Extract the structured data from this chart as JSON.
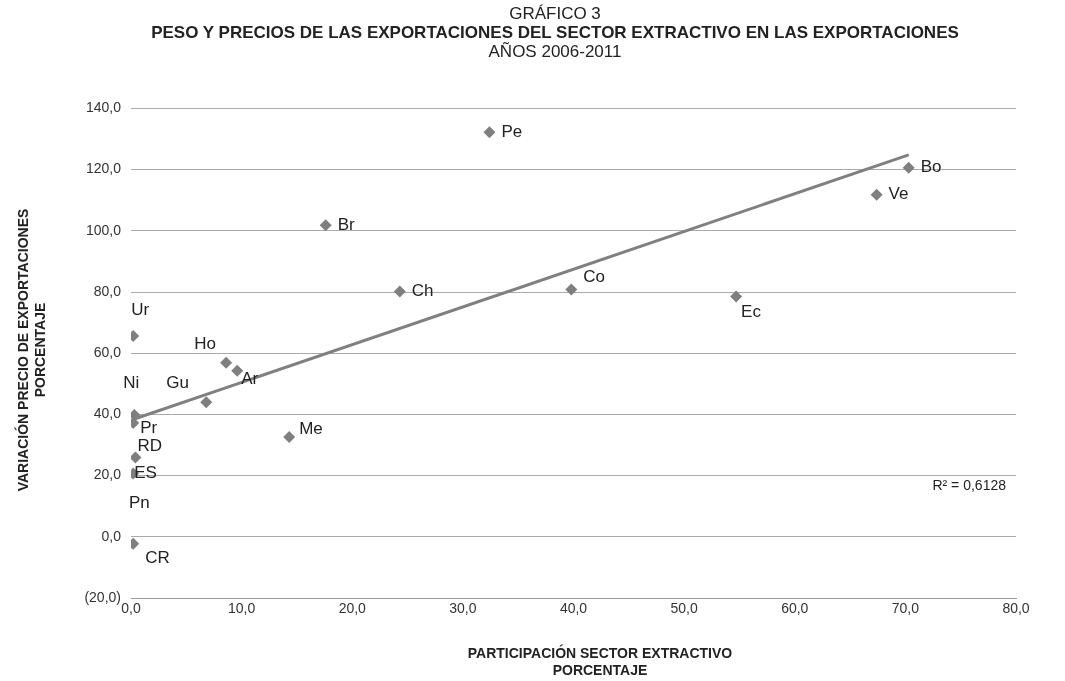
{
  "chart_data": {
    "type": "scatter",
    "title": "PESO Y PRECIOS DE LAS EXPORTACIONES DEL SECTOR EXTRACTIVO EN LAS EXPORTACIONES",
    "subtitle": "AÑOS 2006-2011",
    "xlabel": "PARTICIPACIÓN SECTOR EXTRACTIVO PORCENTAJE",
    "ylabel": "VARIACIÓN PRECIO DE EXPORTACIONES PORCENTAJE",
    "xlim": [
      0,
      80
    ],
    "xticks": [
      {
        "value": 0,
        "label": "0,0"
      },
      {
        "value": 10,
        "label": "10,0"
      },
      {
        "value": 20,
        "label": "20,0"
      },
      {
        "value": 30,
        "label": "30,0"
      },
      {
        "value": 40,
        "label": "40,0"
      },
      {
        "value": 50,
        "label": "50,0"
      },
      {
        "value": 60,
        "label": "60,0"
      },
      {
        "value": 70,
        "label": "70,0"
      },
      {
        "value": 80,
        "label": "80,0"
      }
    ],
    "ylim": [
      -20,
      140
    ],
    "yticks": [
      {
        "value": -20,
        "label": "(20,0)"
      },
      {
        "value": 0,
        "label": "0,0"
      },
      {
        "value": 20,
        "label": "20,0"
      },
      {
        "value": 40,
        "label": "40,0"
      },
      {
        "value": 60,
        "label": "60,0"
      },
      {
        "value": 80,
        "label": "80,0"
      },
      {
        "value": 100,
        "label": "100,0"
      },
      {
        "value": 120,
        "label": "120,0"
      },
      {
        "value": 140,
        "label": "140,0"
      }
    ],
    "grid": "y",
    "legend": false,
    "marker": "diamond",
    "series": [
      {
        "color": "#7f7f7f",
        "x": [
          32.4,
          70.3,
          67.4,
          17.6,
          24.3,
          39.8,
          54.7,
          0.2,
          8.6,
          9.6,
          6.8,
          14.3,
          0.3,
          0.2,
          0.4,
          0.2,
          null,
          0.2
        ],
        "values": [
          132.2,
          120.6,
          111.8,
          101.8,
          80.2,
          80.8,
          78.5,
          65.6,
          56.9,
          54.3,
          44.0,
          32.6,
          39.8,
          37.2,
          25.9,
          20.7,
          null,
          -2.3
        ]
      },
      {
        "type": "line",
        "color": "#808080",
        "line_style": "solid",
        "marker": "none",
        "x": [
          0.3,
          70.3
        ],
        "values": [
          38.5,
          124.8
        ]
      }
    ],
    "annotations": [
      "GRÁFICO 3",
      "R² = 0,6128",
      {
        "text": "Pe",
        "x": 32.4,
        "y": 132.2
      },
      {
        "text": "Bo",
        "x": 70.3,
        "y": 120.6
      },
      {
        "text": "Ve",
        "x": 67.4,
        "y": 111.8
      },
      {
        "text": "Br",
        "x": 17.6,
        "y": 101.8
      },
      {
        "text": "Ch",
        "x": 24.3,
        "y": 80.2
      },
      {
        "text": "Co",
        "x": 39.8,
        "y": 80.8
      },
      {
        "text": "Ec",
        "x": 54.7,
        "y": 78.5
      },
      {
        "text": "Ur",
        "x": 0.2,
        "y": 65.6
      },
      {
        "text": "Ho",
        "x": 8.6,
        "y": 56.9
      },
      {
        "text": "Ar",
        "x": 9.6,
        "y": 54.3
      },
      {
        "text": "Gu",
        "x": 6.8,
        "y": 44.0
      },
      {
        "text": "Me",
        "x": 14.3,
        "y": 32.6
      },
      {
        "text": "Ni",
        "x": 0.3,
        "y": 39.8
      },
      {
        "text": "Pr",
        "x": 0.2,
        "y": 37.2
      },
      {
        "text": "RD",
        "x": 0.4,
        "y": 25.9
      },
      {
        "text": "ES",
        "x": 0.2,
        "y": 20.7
      },
      {
        "text": "Pn",
        "x": 0.0,
        "y": 20.0
      },
      {
        "text": "CR",
        "x": 0.2,
        "y": -2.3
      }
    ]
  }
}
